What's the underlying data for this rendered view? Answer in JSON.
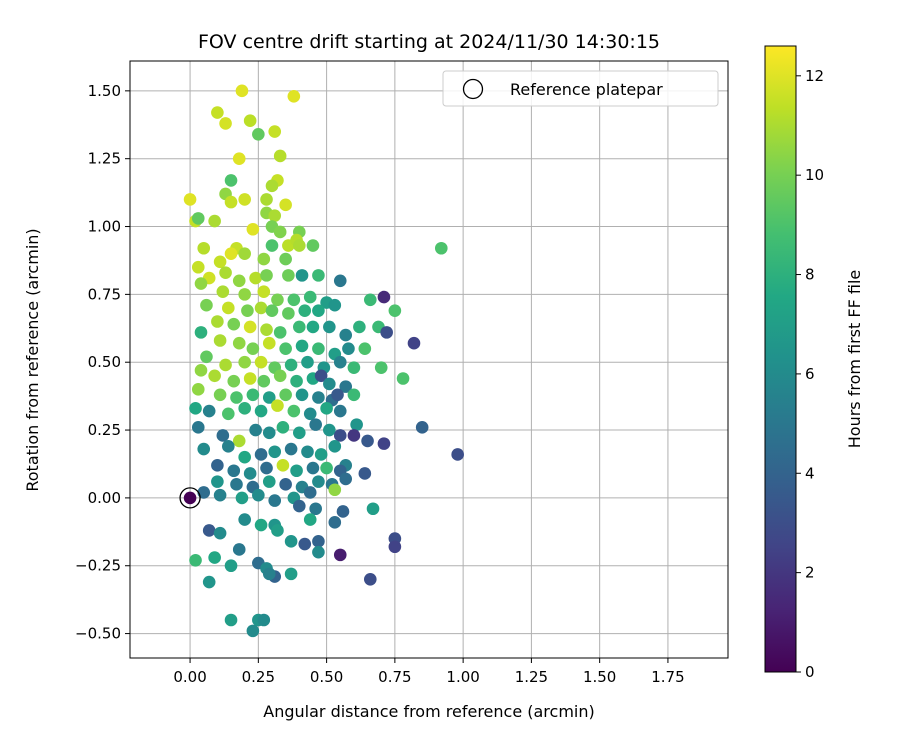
{
  "chart_data": {
    "type": "scatter",
    "title": "FOV centre drift starting at 2024/11/30 14:30:15",
    "xlabel": "Angular distance from reference (arcmin)",
    "ylabel": "Rotation from reference (arcmin)",
    "xlim": [
      -0.22,
      1.97
    ],
    "ylim": [
      -0.59,
      1.61
    ],
    "x_ticks": [
      0.0,
      0.25,
      0.5,
      0.75,
      1.0,
      1.25,
      1.5,
      1.75
    ],
    "x_tick_labels": [
      "0.00",
      "0.25",
      "0.50",
      "0.75",
      "1.00",
      "1.25",
      "1.50",
      "1.75"
    ],
    "y_ticks": [
      -0.5,
      -0.25,
      0.0,
      0.25,
      0.5,
      0.75,
      1.0,
      1.25,
      1.5
    ],
    "y_tick_labels": [
      "−0.50",
      "−0.25",
      "0.00",
      "0.25",
      "0.50",
      "0.75",
      "1.00",
      "1.25",
      "1.50"
    ],
    "grid": true,
    "colormap": "viridis",
    "colorbar": {
      "label": "Hours from first FF file",
      "range": [
        0,
        12.6
      ],
      "ticks": [
        0,
        2,
        4,
        6,
        8,
        10,
        12
      ],
      "tick_labels": [
        "0",
        "2",
        "4",
        "6",
        "8",
        "10",
        "12"
      ]
    },
    "legend": {
      "position": "top-right",
      "label": "Reference platepar"
    },
    "reference_point": {
      "x": 0.0,
      "y": 0.0,
      "c": 0.0
    },
    "points": [
      [
        0.38,
        1.48,
        12.0
      ],
      [
        0.19,
        1.5,
        12.0
      ],
      [
        0.1,
        1.42,
        11.5
      ],
      [
        0.22,
        1.39,
        11.3
      ],
      [
        0.13,
        1.38,
        11.8
      ],
      [
        0.31,
        1.35,
        11.5
      ],
      [
        0.25,
        1.34,
        9.5
      ],
      [
        0.18,
        1.25,
        12.0
      ],
      [
        0.33,
        1.26,
        11.2
      ],
      [
        0.15,
        1.17,
        9.0
      ],
      [
        0.32,
        1.17,
        11.5
      ],
      [
        0.3,
        1.15,
        11.0
      ],
      [
        0.13,
        1.12,
        10.5
      ],
      [
        0.2,
        1.1,
        11.7
      ],
      [
        0.28,
        1.1,
        11.0
      ],
      [
        0.15,
        1.09,
        11.5
      ],
      [
        0.35,
        1.08,
        11.8
      ],
      [
        0.0,
        1.1,
        12.0
      ],
      [
        0.28,
        1.05,
        10.5
      ],
      [
        0.31,
        1.04,
        11.0
      ],
      [
        0.02,
        1.02,
        11.5
      ],
      [
        0.09,
        1.02,
        11.0
      ],
      [
        0.03,
        1.03,
        9.5
      ],
      [
        0.23,
        0.99,
        12.0
      ],
      [
        0.3,
        1.0,
        10.0
      ],
      [
        0.33,
        0.98,
        10.2
      ],
      [
        0.4,
        0.98,
        10.0
      ],
      [
        0.36,
        0.93,
        11.3
      ],
      [
        0.39,
        0.95,
        11.2
      ],
      [
        0.4,
        0.93,
        11.0
      ],
      [
        0.45,
        0.93,
        9.5
      ],
      [
        0.3,
        0.93,
        9.0
      ],
      [
        0.17,
        0.92,
        11.5
      ],
      [
        0.2,
        0.9,
        10.8
      ],
      [
        0.15,
        0.9,
        12.0
      ],
      [
        0.05,
        0.92,
        11.2
      ],
      [
        0.11,
        0.87,
        11.5
      ],
      [
        0.27,
        0.88,
        10.5
      ],
      [
        0.35,
        0.88,
        9.8
      ],
      [
        0.92,
        0.92,
        9.0
      ],
      [
        0.13,
        0.83,
        11.0
      ],
      [
        0.07,
        0.81,
        11.7
      ],
      [
        0.18,
        0.8,
        10.5
      ],
      [
        0.24,
        0.81,
        11.2
      ],
      [
        0.28,
        0.82,
        10.0
      ],
      [
        0.36,
        0.82,
        9.8
      ],
      [
        0.41,
        0.82,
        6.5
      ],
      [
        0.47,
        0.82,
        8.5
      ],
      [
        0.03,
        0.85,
        11.5
      ],
      [
        0.04,
        0.79,
        10.5
      ],
      [
        0.12,
        0.76,
        11.0
      ],
      [
        0.2,
        0.75,
        10.5
      ],
      [
        0.27,
        0.76,
        11.5
      ],
      [
        0.32,
        0.73,
        10.0
      ],
      [
        0.38,
        0.73,
        9.0
      ],
      [
        0.44,
        0.74,
        8.5
      ],
      [
        0.5,
        0.72,
        7.0
      ],
      [
        0.55,
        0.8,
        5.0
      ],
      [
        0.66,
        0.73,
        8.5
      ],
      [
        0.71,
        0.74,
        1.5
      ],
      [
        0.06,
        0.71,
        10.0
      ],
      [
        0.14,
        0.7,
        11.5
      ],
      [
        0.21,
        0.69,
        10.0
      ],
      [
        0.26,
        0.7,
        11.0
      ],
      [
        0.3,
        0.69,
        9.5
      ],
      [
        0.36,
        0.68,
        9.5
      ],
      [
        0.42,
        0.69,
        8.0
      ],
      [
        0.47,
        0.69,
        7.5
      ],
      [
        0.53,
        0.71,
        6.5
      ],
      [
        0.75,
        0.69,
        9.0
      ],
      [
        0.1,
        0.65,
        11.0
      ],
      [
        0.16,
        0.64,
        10.0
      ],
      [
        0.22,
        0.63,
        11.8
      ],
      [
        0.28,
        0.62,
        11.0
      ],
      [
        0.33,
        0.61,
        9.0
      ],
      [
        0.4,
        0.63,
        8.5
      ],
      [
        0.45,
        0.63,
        7.5
      ],
      [
        0.51,
        0.63,
        6.5
      ],
      [
        0.57,
        0.6,
        5.5
      ],
      [
        0.62,
        0.63,
        8.0
      ],
      [
        0.69,
        0.63,
        8.5
      ],
      [
        0.72,
        0.61,
        3.0
      ],
      [
        0.04,
        0.61,
        8.0
      ],
      [
        0.11,
        0.58,
        11.0
      ],
      [
        0.18,
        0.57,
        10.5
      ],
      [
        0.23,
        0.55,
        10.0
      ],
      [
        0.29,
        0.57,
        11.5
      ],
      [
        0.35,
        0.55,
        9.0
      ],
      [
        0.41,
        0.56,
        7.5
      ],
      [
        0.47,
        0.55,
        8.5
      ],
      [
        0.53,
        0.53,
        7.0
      ],
      [
        0.58,
        0.55,
        6.0
      ],
      [
        0.64,
        0.55,
        9.0
      ],
      [
        0.82,
        0.57,
        2.5
      ],
      [
        0.06,
        0.52,
        9.5
      ],
      [
        0.13,
        0.49,
        11.0
      ],
      [
        0.2,
        0.5,
        10.5
      ],
      [
        0.26,
        0.5,
        11.5
      ],
      [
        0.31,
        0.48,
        9.5
      ],
      [
        0.37,
        0.49,
        8.0
      ],
      [
        0.43,
        0.5,
        7.0
      ],
      [
        0.49,
        0.48,
        6.5
      ],
      [
        0.55,
        0.5,
        5.5
      ],
      [
        0.6,
        0.48,
        8.5
      ],
      [
        0.7,
        0.48,
        9.0
      ],
      [
        0.04,
        0.47,
        10.5
      ],
      [
        0.09,
        0.45,
        11.0
      ],
      [
        0.16,
        0.43,
        10.0
      ],
      [
        0.22,
        0.44,
        11.5
      ],
      [
        0.27,
        0.43,
        9.5
      ],
      [
        0.33,
        0.45,
        10.0
      ],
      [
        0.39,
        0.43,
        8.0
      ],
      [
        0.45,
        0.44,
        7.5
      ],
      [
        0.48,
        0.45,
        3.0
      ],
      [
        0.51,
        0.42,
        6.0
      ],
      [
        0.57,
        0.41,
        5.0
      ],
      [
        0.78,
        0.44,
        9.0
      ],
      [
        0.03,
        0.4,
        10.5
      ],
      [
        0.11,
        0.38,
        10.0
      ],
      [
        0.17,
        0.37,
        9.0
      ],
      [
        0.23,
        0.38,
        8.5
      ],
      [
        0.29,
        0.37,
        7.0
      ],
      [
        0.35,
        0.38,
        9.5
      ],
      [
        0.41,
        0.38,
        6.5
      ],
      [
        0.47,
        0.37,
        5.5
      ],
      [
        0.52,
        0.36,
        4.5
      ],
      [
        0.54,
        0.38,
        3.5
      ],
      [
        0.6,
        0.38,
        8.5
      ],
      [
        0.02,
        0.33,
        7.5
      ],
      [
        0.07,
        0.32,
        5.5
      ],
      [
        0.14,
        0.31,
        9.0
      ],
      [
        0.2,
        0.33,
        8.0
      ],
      [
        0.26,
        0.32,
        7.5
      ],
      [
        0.32,
        0.34,
        11.5
      ],
      [
        0.38,
        0.32,
        9.0
      ],
      [
        0.44,
        0.31,
        6.0
      ],
      [
        0.5,
        0.33,
        7.5
      ],
      [
        0.55,
        0.32,
        5.0
      ],
      [
        0.61,
        0.27,
        6.5
      ],
      [
        0.03,
        0.26,
        5.0
      ],
      [
        0.12,
        0.23,
        4.5
      ],
      [
        0.18,
        0.21,
        11.0
      ],
      [
        0.24,
        0.25,
        5.5
      ],
      [
        0.29,
        0.24,
        6.0
      ],
      [
        0.34,
        0.26,
        8.0
      ],
      [
        0.4,
        0.24,
        7.0
      ],
      [
        0.46,
        0.27,
        5.0
      ],
      [
        0.51,
        0.25,
        6.5
      ],
      [
        0.55,
        0.23,
        3.0
      ],
      [
        0.6,
        0.23,
        2.0
      ],
      [
        0.65,
        0.21,
        3.5
      ],
      [
        0.71,
        0.2,
        2.5
      ],
      [
        0.85,
        0.26,
        4.0
      ],
      [
        0.98,
        0.16,
        3.0
      ],
      [
        0.05,
        0.18,
        6.0
      ],
      [
        0.14,
        0.19,
        5.5
      ],
      [
        0.2,
        0.15,
        7.5
      ],
      [
        0.26,
        0.16,
        4.5
      ],
      [
        0.31,
        0.17,
        6.5
      ],
      [
        0.37,
        0.18,
        5.0
      ],
      [
        0.43,
        0.17,
        6.0
      ],
      [
        0.48,
        0.16,
        7.0
      ],
      [
        0.53,
        0.19,
        6.5
      ],
      [
        0.57,
        0.12,
        5.5
      ],
      [
        0.1,
        0.12,
        4.0
      ],
      [
        0.16,
        0.1,
        5.0
      ],
      [
        0.22,
        0.09,
        6.0
      ],
      [
        0.28,
        0.11,
        4.5
      ],
      [
        0.34,
        0.12,
        11.5
      ],
      [
        0.39,
        0.1,
        7.0
      ],
      [
        0.45,
        0.11,
        5.0
      ],
      [
        0.5,
        0.11,
        8.5
      ],
      [
        0.55,
        0.1,
        4.0
      ],
      [
        0.64,
        0.09,
        3.5
      ],
      [
        0.1,
        0.06,
        6.5
      ],
      [
        0.17,
        0.05,
        5.0
      ],
      [
        0.23,
        0.04,
        4.5
      ],
      [
        0.29,
        0.06,
        7.0
      ],
      [
        0.35,
        0.05,
        4.0
      ],
      [
        0.41,
        0.04,
        5.5
      ],
      [
        0.47,
        0.06,
        6.0
      ],
      [
        0.52,
        0.05,
        5.0
      ],
      [
        0.53,
        0.03,
        10.5
      ],
      [
        0.57,
        0.07,
        4.5
      ],
      [
        0.05,
        0.02,
        4.5
      ],
      [
        0.11,
        0.01,
        5.5
      ],
      [
        0.19,
        0.0,
        7.0
      ],
      [
        0.25,
        0.01,
        6.0
      ],
      [
        0.31,
        -0.01,
        5.0
      ],
      [
        0.38,
        0.0,
        6.5
      ],
      [
        0.44,
        0.02,
        4.5
      ],
      [
        0.4,
        -0.03,
        4.0
      ],
      [
        0.46,
        -0.04,
        5.0
      ],
      [
        0.56,
        -0.05,
        4.0
      ],
      [
        0.67,
        -0.04,
        7.0
      ],
      [
        0.2,
        -0.08,
        6.0
      ],
      [
        0.26,
        -0.1,
        7.5
      ],
      [
        0.31,
        -0.1,
        6.5
      ],
      [
        0.44,
        -0.08,
        7.5
      ],
      [
        0.53,
        -0.09,
        4.5
      ],
      [
        0.07,
        -0.12,
        3.5
      ],
      [
        0.11,
        -0.13,
        6.0
      ],
      [
        0.32,
        -0.12,
        7.0
      ],
      [
        0.37,
        -0.16,
        6.5
      ],
      [
        0.42,
        -0.17,
        3.5
      ],
      [
        0.47,
        -0.16,
        4.0
      ],
      [
        0.47,
        -0.2,
        6.0
      ],
      [
        0.55,
        -0.21,
        1.0
      ],
      [
        0.75,
        -0.15,
        3.0
      ],
      [
        0.75,
        -0.18,
        2.5
      ],
      [
        0.02,
        -0.23,
        8.5
      ],
      [
        0.09,
        -0.22,
        7.5
      ],
      [
        0.15,
        -0.25,
        7.0
      ],
      [
        0.18,
        -0.19,
        5.0
      ],
      [
        0.25,
        -0.24,
        4.5
      ],
      [
        0.28,
        -0.26,
        6.0
      ],
      [
        0.31,
        -0.29,
        4.0
      ],
      [
        0.29,
        -0.28,
        5.5
      ],
      [
        0.37,
        -0.28,
        7.0
      ],
      [
        0.66,
        -0.3,
        3.0
      ],
      [
        0.07,
        -0.31,
        6.5
      ],
      [
        0.15,
        -0.45,
        7.0
      ],
      [
        0.25,
        -0.45,
        6.5
      ],
      [
        0.27,
        -0.45,
        6.0
      ],
      [
        0.23,
        -0.49,
        6.0
      ]
    ]
  }
}
